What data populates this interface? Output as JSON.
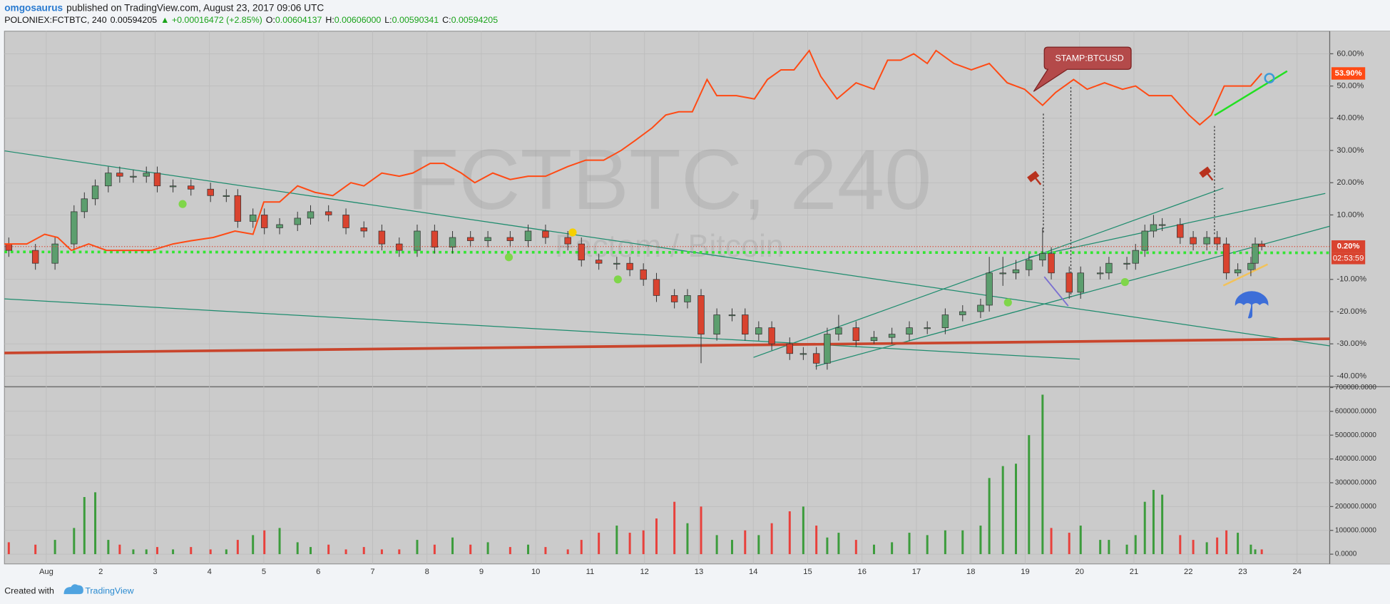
{
  "header": {
    "author": "omgosaurus",
    "published": "published on TradingView.com, August 23, 2017 09:06 UTC"
  },
  "symbol_bar": {
    "symbol": "POLONIEX:FCTBTC, 240",
    "last": "0.00594205",
    "change": "▲ +0.00016472 (+2.85%)",
    "open_label": "O:",
    "open": "0.00604137",
    "high_label": "H:",
    "high": "0.00606000",
    "low_label": "L:",
    "low": "0.00590341",
    "close_label": "C:",
    "close": "0.00594205"
  },
  "watermark": {
    "symbol": "FCTBTC, 240",
    "description": "Factom / Bitcoin"
  },
  "chart_data": [
    {
      "type": "candlestick",
      "up_color": "#5c9e6e",
      "down_color": "#d9432f",
      "grid": true,
      "xlim": [
        0.23,
        24.6
      ],
      "ylim": [
        -43,
        67
      ],
      "xticks": [
        {
          "value": 1,
          "label": "Aug"
        },
        2,
        3,
        4,
        5,
        6,
        7,
        8,
        9,
        10,
        11,
        12,
        13,
        14,
        15,
        16,
        17,
        18,
        19,
        20,
        21,
        22,
        23,
        24
      ],
      "yticks": [
        {
          "value": 60,
          "label": "60.00%"
        },
        {
          "value": 50,
          "label": "50.00%"
        },
        {
          "value": 40,
          "label": "40.00%"
        },
        {
          "value": 30,
          "label": "30.00%"
        },
        {
          "value": 20,
          "label": "20.00%"
        },
        {
          "value": 10,
          "label": "10.00%"
        },
        {
          "value": -10,
          "label": "-10.00%"
        },
        {
          "value": -20,
          "label": "-20.00%"
        },
        {
          "value": -30,
          "label": "-30.00%"
        },
        {
          "value": -40,
          "label": "-40.00%"
        }
      ],
      "x": [
        0.31,
        0.8,
        1.16,
        1.51,
        1.7,
        1.9,
        2.14,
        2.35,
        2.6,
        2.84,
        3.04,
        3.33,
        3.66,
        4.02,
        4.31,
        4.52,
        4.8,
        5.01,
        5.29,
        5.62,
        5.86,
        6.19,
        6.51,
        6.84,
        7.17,
        7.49,
        7.82,
        8.14,
        8.47,
        8.8,
        9.12,
        9.53,
        9.86,
        10.18,
        10.59,
        10.84,
        11.16,
        11.49,
        11.73,
        11.98,
        12.22,
        12.55,
        12.79,
        13.04,
        13.33,
        13.61,
        13.85,
        14.1,
        14.34,
        14.67,
        14.92,
        15.16,
        15.36,
        15.57,
        15.89,
        16.22,
        16.55,
        16.87,
        17.2,
        17.53,
        17.85,
        18.18,
        18.34,
        18.59,
        18.83,
        19.07,
        19.32,
        19.48,
        19.81,
        20.02,
        20.38,
        20.54,
        20.87,
        21.03,
        21.2,
        21.36,
        21.52,
        21.85,
        22.09,
        22.34,
        22.53,
        22.7,
        22.91,
        23.15,
        23.23,
        23.35
      ],
      "open": [
        1,
        -1,
        -5,
        1,
        11,
        15,
        19,
        23,
        22,
        22,
        23,
        19,
        19,
        18,
        16,
        16,
        8,
        10,
        6,
        7,
        9,
        11,
        10,
        6,
        5,
        1,
        -1,
        5,
        0,
        3,
        2,
        3,
        2,
        5,
        3,
        1,
        -4,
        -5,
        -5,
        -7,
        -10,
        -15,
        -17,
        -15,
        -27,
        -21,
        -21,
        -27,
        -25,
        -30,
        -33,
        -33,
        -36,
        -27,
        -25,
        -29,
        -28,
        -27,
        -25,
        -25,
        -21,
        -20,
        -18,
        -8,
        -8,
        -7,
        -4,
        -2,
        -8,
        -14,
        -8,
        -8,
        -5,
        -5,
        -1,
        5,
        7,
        7,
        3,
        1,
        3,
        1,
        -8,
        -7,
        -5,
        1
      ],
      "high": [
        3,
        1,
        3,
        13,
        17,
        21,
        25,
        25,
        24,
        25,
        25,
        21,
        21,
        20,
        18,
        18,
        12,
        12,
        9,
        11,
        13,
        13,
        12,
        8,
        7,
        3,
        7,
        7,
        5,
        5,
        5,
        5,
        7,
        7,
        5,
        3,
        -2,
        -3,
        -3,
        -5,
        -8,
        -13,
        -13,
        -13,
        -19,
        -19,
        -19,
        -23,
        -23,
        -28,
        -31,
        -31,
        -25,
        -21,
        -23,
        -26,
        -25,
        -23,
        -23,
        -19,
        -18,
        -16,
        -3,
        -3,
        -4,
        -2,
        6,
        0,
        -6,
        -6,
        -6,
        -3,
        -3,
        1,
        7,
        10,
        9,
        9,
        5,
        5,
        5,
        3,
        -5,
        -3,
        3,
        2
      ],
      "low": [
        -3,
        -7,
        -7,
        -1,
        9,
        13,
        17,
        20,
        20,
        20,
        17,
        17,
        16,
        14,
        14,
        6,
        6,
        4,
        4,
        5,
        7,
        8,
        4,
        3,
        -1,
        -3,
        -3,
        -2,
        -2,
        0,
        0,
        0,
        0,
        1,
        -1,
        -6,
        -7,
        -7,
        -9,
        -12,
        -17,
        -19,
        -19,
        -36,
        -29,
        -23,
        -29,
        -29,
        -32,
        -35,
        -35,
        -38,
        -38,
        -29,
        -31,
        -30,
        -30,
        -29,
        -27,
        -27,
        -23,
        -22,
        -20,
        -12,
        -10,
        -9,
        -6,
        -10,
        -16,
        -16,
        -10,
        -10,
        -7,
        -7,
        -3,
        3,
        5,
        1,
        -1,
        -1,
        -1,
        -10,
        -9,
        -9,
        -7,
        -1
      ],
      "close": [
        -1,
        -5,
        1,
        11,
        15,
        19,
        23,
        22,
        22,
        23,
        19,
        19,
        18,
        16,
        16,
        8,
        10,
        6,
        7,
        9,
        11,
        10,
        6,
        5,
        1,
        -1,
        5,
        0,
        3,
        2,
        3,
        2,
        5,
        3,
        1,
        -4,
        -5,
        -5,
        -7,
        -10,
        -15,
        -17,
        -15,
        -27,
        -21,
        -21,
        -27,
        -25,
        -30,
        -33,
        -33,
        -36,
        -27,
        -25,
        -29,
        -28,
        -27,
        -25,
        -25,
        -21,
        -20,
        -18,
        -8,
        -8,
        -7,
        -4,
        -2,
        -8,
        -14,
        -8,
        -8,
        -5,
        -5,
        -1,
        5,
        7,
        7,
        3,
        1,
        3,
        1,
        -8,
        -7,
        -5,
        1,
        0.2
      ],
      "last_label": "0.20%",
      "countdown": "02:53:59",
      "series": [
        {
          "name": "STAMP:BTCUSD",
          "color": "#ff4a14",
          "last_label": "53.90%",
          "x": [
            0.23,
            0.64,
            0.97,
            1.21,
            1.46,
            1.78,
            2.11,
            2.52,
            2.93,
            3.33,
            3.66,
            4.07,
            4.47,
            4.8,
            5.0,
            5.29,
            5.62,
            5.94,
            6.27,
            6.6,
            6.84,
            7.17,
            7.49,
            7.74,
            8.06,
            8.31,
            8.63,
            8.88,
            9.21,
            9.53,
            9.86,
            10.18,
            10.59,
            10.92,
            11.25,
            11.57,
            11.82,
            12.14,
            12.39,
            12.63,
            12.88,
            13.15,
            13.33,
            13.69,
            14.02,
            14.26,
            14.51,
            14.75,
            15.03,
            15.24,
            15.54,
            15.89,
            16.22,
            16.47,
            16.71,
            16.95,
            17.2,
            17.36,
            17.69,
            18.01,
            18.34,
            18.67,
            18.99,
            19.32,
            19.56,
            19.89,
            20.14,
            20.46,
            20.79,
            21.03,
            21.28,
            21.69,
            22.01,
            22.21,
            22.42,
            22.66,
            23.15,
            23.35
          ],
          "values": [
            1,
            1,
            4,
            3,
            -1,
            1,
            -1,
            -1,
            -1,
            1,
            2,
            3,
            5,
            4,
            14,
            14,
            19,
            17,
            16,
            20,
            19,
            23,
            22,
            23,
            26,
            26,
            23,
            20,
            23,
            21,
            22,
            22,
            25,
            27,
            27,
            30,
            33,
            37,
            41,
            42,
            42,
            52,
            47,
            47,
            46,
            52,
            55,
            55,
            61,
            53,
            46,
            51,
            49,
            58,
            58,
            60,
            57,
            61,
            57,
            55,
            57,
            51,
            49,
            44,
            48,
            52,
            49,
            51,
            49,
            50,
            47,
            47,
            41,
            38,
            41,
            50,
            50,
            53.9
          ]
        }
      ]
    },
    {
      "type": "bar",
      "up_color": "#3c9c3c",
      "down_color": "#e8413c",
      "grid": true,
      "xlim": [
        0.23,
        24.6
      ],
      "ylim": [
        -41000,
        700000
      ],
      "yticks": [
        {
          "value": 0,
          "label": "0.0000"
        },
        {
          "value": 100000,
          "label": "100000.0000"
        },
        {
          "value": 200000,
          "label": "200000.0000"
        },
        {
          "value": 300000,
          "label": "300000.0000"
        },
        {
          "value": 400000,
          "label": "400000.0000"
        },
        {
          "value": 500000,
          "label": "500000.0000"
        },
        {
          "value": 600000,
          "label": "600000.0000"
        },
        {
          "value": 700000,
          "label": "700000.0000"
        }
      ],
      "values": [
        50000,
        40000,
        60000,
        110000,
        240000,
        260000,
        60000,
        40000,
        20000,
        20000,
        30000,
        20000,
        30000,
        20000,
        20000,
        60000,
        80000,
        100000,
        110000,
        50000,
        30000,
        40000,
        20000,
        30000,
        20000,
        20000,
        60000,
        40000,
        70000,
        40000,
        50000,
        30000,
        40000,
        30000,
        20000,
        60000,
        90000,
        120000,
        90000,
        100000,
        150000,
        220000,
        130000,
        200000,
        80000,
        60000,
        100000,
        80000,
        130000,
        180000,
        200000,
        120000,
        70000,
        90000,
        60000,
        40000,
        50000,
        90000,
        80000,
        100000,
        100000,
        120000,
        320000,
        370000,
        380000,
        500000,
        670000,
        110000,
        90000,
        120000,
        60000,
        60000,
        40000,
        80000,
        220000,
        270000,
        250000,
        80000,
        60000,
        50000,
        70000,
        100000,
        90000,
        40000,
        20000,
        20000
      ]
    }
  ],
  "footer": {
    "created_with": "Created with",
    "brand": "TradingView"
  }
}
